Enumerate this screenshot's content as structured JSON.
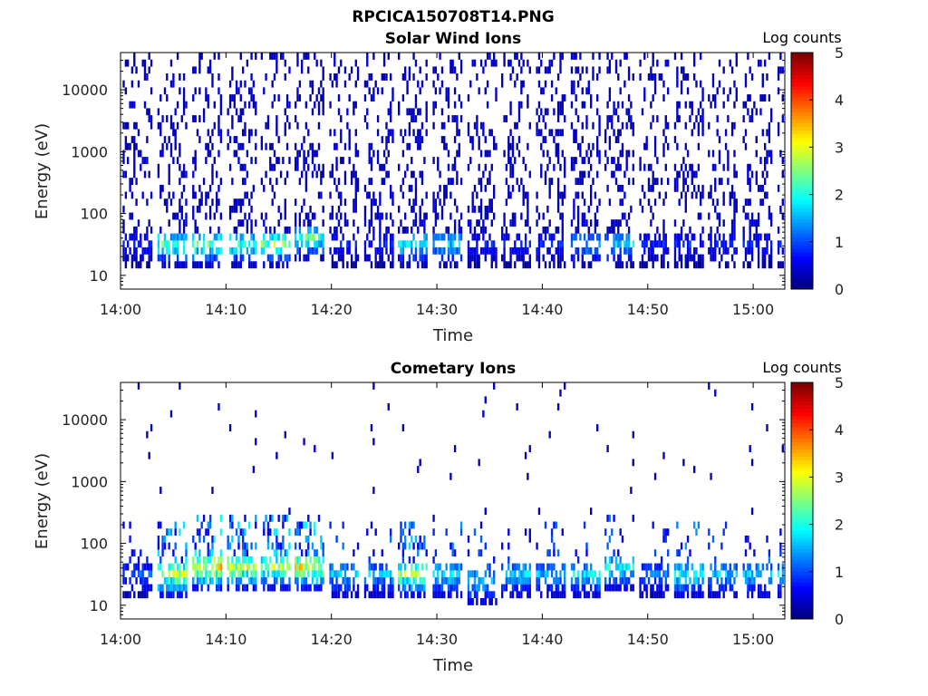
{
  "figure_title": "RPCICA150708T14.PNG",
  "chart_data": [
    {
      "type": "heatmap",
      "title": "Solar Wind Ions",
      "xlabel": "Time",
      "ylabel": "Energy (eV)",
      "x_ticks": [
        "14:00",
        "14:10",
        "14:20",
        "14:30",
        "14:40",
        "14:50",
        "15:00"
      ],
      "x_range": [
        "14:00",
        "15:03"
      ],
      "y_scale": "log",
      "y_ticks": [
        "10",
        "100",
        "1000",
        "10000"
      ],
      "ylim": [
        6,
        40000
      ],
      "colorbar": {
        "label": "Log counts",
        "range": [
          0,
          5
        ],
        "ticks": [
          "0",
          "1",
          "2",
          "3",
          "4",
          "5"
        ],
        "colormap": "jet"
      },
      "sweep_period_minutes": 3.2,
      "sweep_start_minutes": [
        0.2,
        3.5,
        6.8,
        10.1,
        13.3,
        16.5,
        19.8,
        23.1,
        26.3,
        29.6,
        32.9,
        36.1,
        39.4,
        42.7,
        45.9,
        49.2,
        52.5,
        55.7,
        59.0,
        62.3
      ],
      "bright_sweeps": [
        {
          "t_min": 3.9,
          "energy_eV": 30,
          "log_counts": 2.7
        },
        {
          "t_min": 7.3,
          "energy_eV": 32,
          "log_counts": 2.9
        },
        {
          "t_min": 10.6,
          "energy_eV": 30,
          "log_counts": 2.6
        },
        {
          "t_min": 13.8,
          "energy_eV": 30,
          "log_counts": 3.0
        },
        {
          "t_min": 17.0,
          "energy_eV": 35,
          "log_counts": 2.7
        },
        {
          "t_min": 26.8,
          "energy_eV": 28,
          "log_counts": 2.2
        },
        {
          "t_min": 29.9,
          "energy_eV": 25,
          "log_counts": 2.0
        },
        {
          "t_min": 42.9,
          "energy_eV": 30,
          "log_counts": 1.7
        },
        {
          "t_min": 46.2,
          "energy_eV": 30,
          "log_counts": 1.9
        }
      ]
    },
    {
      "type": "heatmap",
      "title": "Cometary Ions",
      "xlabel": "Time",
      "ylabel": "Energy (eV)",
      "x_ticks": [
        "14:00",
        "14:10",
        "14:20",
        "14:30",
        "14:40",
        "14:50",
        "15:00"
      ],
      "x_range": [
        "14:00",
        "15:03"
      ],
      "y_scale": "log",
      "y_ticks": [
        "10",
        "100",
        "1000",
        "10000"
      ],
      "ylim": [
        6,
        40000
      ],
      "colorbar": {
        "label": "Log counts",
        "range": [
          0,
          5
        ],
        "ticks": [
          "0",
          "1",
          "2",
          "3",
          "4",
          "5"
        ],
        "colormap": "jet"
      },
      "sweep_period_minutes": 3.2,
      "sweep_start_minutes": [
        0.2,
        3.5,
        6.8,
        10.1,
        13.3,
        16.5,
        19.8,
        23.1,
        26.3,
        29.6,
        32.9,
        36.1,
        39.4,
        42.7,
        45.9,
        49.2,
        52.5,
        55.7,
        59.0,
        62.3
      ],
      "bright_sweeps": [
        {
          "t_min": 4.0,
          "energy_eV": 30,
          "log_counts": 3.3
        },
        {
          "t_min": 7.2,
          "energy_eV": 35,
          "log_counts": 3.9
        },
        {
          "t_min": 10.5,
          "energy_eV": 35,
          "log_counts": 3.4
        },
        {
          "t_min": 13.7,
          "energy_eV": 35,
          "log_counts": 3.2
        },
        {
          "t_min": 16.9,
          "energy_eV": 35,
          "log_counts": 3.6
        },
        {
          "t_min": 20.0,
          "energy_eV": 25,
          "log_counts": 1.9
        },
        {
          "t_min": 23.2,
          "energy_eV": 25,
          "log_counts": 1.8
        },
        {
          "t_min": 26.6,
          "energy_eV": 30,
          "log_counts": 3.1
        },
        {
          "t_min": 29.7,
          "energy_eV": 25,
          "log_counts": 2.2
        },
        {
          "t_min": 33.0,
          "energy_eV": 22,
          "log_counts": 2.0
        },
        {
          "t_min": 36.3,
          "energy_eV": 25,
          "log_counts": 2.0
        },
        {
          "t_min": 39.6,
          "energy_eV": 25,
          "log_counts": 1.8
        },
        {
          "t_min": 42.8,
          "energy_eV": 30,
          "log_counts": 2.2
        },
        {
          "t_min": 46.0,
          "energy_eV": 35,
          "log_counts": 2.4
        },
        {
          "t_min": 49.4,
          "energy_eV": 25,
          "log_counts": 1.4
        },
        {
          "t_min": 52.6,
          "energy_eV": 30,
          "log_counts": 2.4
        },
        {
          "t_min": 55.8,
          "energy_eV": 25,
          "log_counts": 1.9
        },
        {
          "t_min": 59.1,
          "energy_eV": 25,
          "log_counts": 2.0
        },
        {
          "t_min": 62.2,
          "energy_eV": 25,
          "log_counts": 2.2
        }
      ]
    }
  ]
}
